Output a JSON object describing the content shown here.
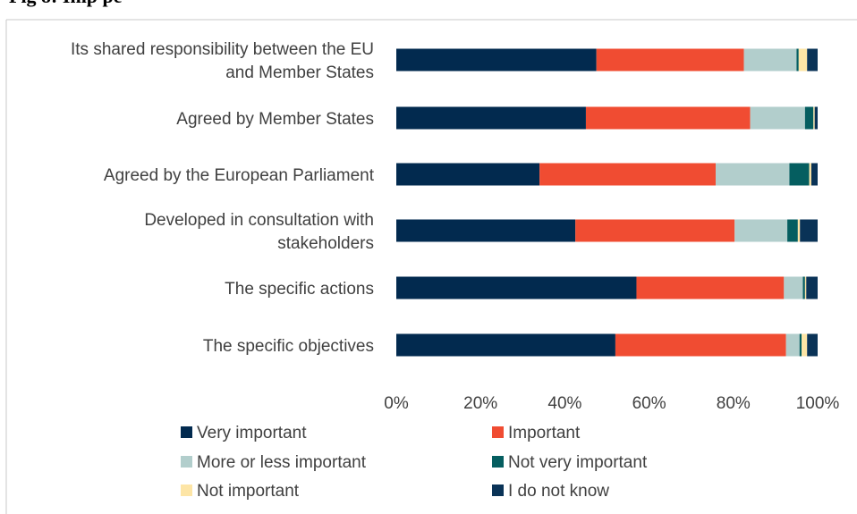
{
  "page": {
    "title_partial": "Fig   8: Imp                             pe"
  },
  "chart_data": {
    "type": "bar",
    "orientation": "horizontal",
    "stacked": "percent",
    "title": "",
    "xlabel": "",
    "ylabel": "",
    "xlim": [
      0,
      100
    ],
    "x_ticks": [
      "0%",
      "20%",
      "40%",
      "60%",
      "80%",
      "100%"
    ],
    "grid": false,
    "legend_position": "bottom",
    "categories": [
      [
        "Its shared responsibility between the EU",
        "and Member States"
      ],
      [
        "Agreed by Member States"
      ],
      [
        "Agreed by the European Parliament"
      ],
      [
        "Developed in consultation with",
        "stakeholders"
      ],
      [
        "The specific actions"
      ],
      [
        "The specific objectives"
      ]
    ],
    "series": [
      {
        "name": "Very important",
        "color": "#022a4f",
        "values": [
          47.5,
          45.0,
          34.0,
          42.5,
          57.0,
          52.0
        ]
      },
      {
        "name": "Important",
        "color": "#f04c32",
        "values": [
          35.0,
          39.0,
          41.8,
          37.8,
          35.0,
          40.5
        ]
      },
      {
        "name": "More or less important",
        "color": "#b2cecc",
        "values": [
          12.5,
          13.0,
          17.5,
          12.5,
          4.5,
          3.2
        ]
      },
      {
        "name": "Not very important",
        "color": "#055e60",
        "values": [
          0.5,
          2.0,
          4.7,
          2.5,
          0.5,
          0.5
        ]
      },
      {
        "name": "Not important",
        "color": "#fde5a6",
        "values": [
          2.0,
          0.3,
          0.5,
          0.5,
          0.3,
          1.3
        ]
      },
      {
        "name": "I do not know",
        "color": "#0a3357",
        "values": [
          2.5,
          0.7,
          1.5,
          4.2,
          2.7,
          2.5
        ]
      }
    ]
  }
}
